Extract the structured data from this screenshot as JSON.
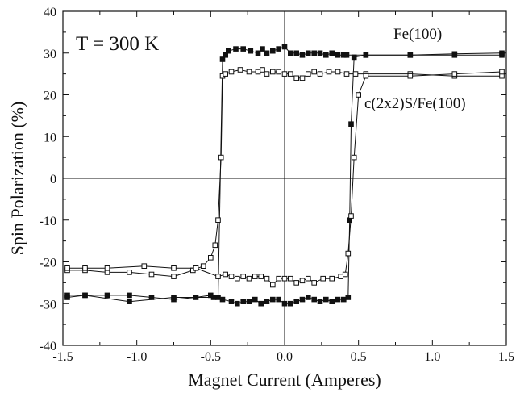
{
  "chart_data": {
    "type": "line",
    "title": "",
    "xlabel": "Magnet Current (Amperes)",
    "ylabel": "Spin Polarization (%)",
    "xlim": [
      -1.5,
      1.5
    ],
    "ylim": [
      -40,
      40
    ],
    "x_ticks": [
      "-1.5",
      "-1.0",
      "-0.5",
      "0.0",
      "0.5",
      "1.0",
      "1.5"
    ],
    "y_ticks": [
      "40",
      "30",
      "20",
      "10",
      "0",
      "-10",
      "-20",
      "-30",
      "-40"
    ],
    "x_tick_values": [
      -1.5,
      -1.0,
      -0.5,
      0.0,
      0.5,
      1.0,
      1.5
    ],
    "y_tick_values": [
      40,
      30,
      20,
      10,
      0,
      -10,
      -20,
      -30,
      -40
    ],
    "annotations": {
      "temperature": "T = 300 K",
      "series_fe": "Fe(100)",
      "series_s": "c(2x2)S/Fe(100)"
    },
    "grid": false,
    "series": [
      {
        "name": "Fe(100)",
        "marker": "filled-square",
        "color": "#111111",
        "branches": [
          {
            "x": [
              -1.47,
              -1.35,
              -1.2,
              -1.05,
              -0.9,
              -0.75,
              -0.6,
              -0.5,
              -0.45,
              -0.42,
              -0.4,
              -0.38,
              -0.33,
              -0.28,
              -0.23,
              -0.18,
              -0.15,
              -0.12,
              -0.08,
              -0.04,
              0.0,
              0.04,
              0.08,
              0.12,
              0.16,
              0.2,
              0.24,
              0.28,
              0.32,
              0.36,
              0.4,
              0.42,
              0.55,
              0.85,
              1.15,
              1.47
            ],
            "y": [
              -28,
              -28,
              -28,
              -28,
              -28.5,
              -29,
              -28.5,
              -28,
              -28.5,
              28.5,
              29.5,
              30.5,
              31,
              31,
              30.5,
              30,
              31,
              30,
              30.5,
              31,
              31.5,
              30,
              30,
              29.5,
              30,
              30,
              30,
              29.5,
              30,
              29.5,
              29.5,
              29.5,
              29.5,
              29.5,
              29.8,
              30
            ]
          },
          {
            "x": [
              1.47,
              1.15,
              0.85,
              0.55,
              0.47,
              0.45,
              0.44,
              0.43,
              0.4,
              0.36,
              0.32,
              0.28,
              0.24,
              0.2,
              0.16,
              0.12,
              0.08,
              0.04,
              0.0,
              -0.04,
              -0.08,
              -0.12,
              -0.16,
              -0.2,
              -0.24,
              -0.28,
              -0.32,
              -0.36,
              -0.42,
              -0.48,
              -0.75,
              -1.05,
              -1.35,
              -1.47
            ],
            "y": [
              29.5,
              29.5,
              29.5,
              29.5,
              29,
              13,
              -10,
              -28.5,
              -29,
              -29,
              -29.5,
              -29,
              -29.5,
              -29,
              -28.5,
              -29,
              -29.5,
              -30,
              -30,
              -29,
              -29,
              -29.5,
              -30,
              -29,
              -29.5,
              -29.5,
              -30,
              -29.5,
              -29,
              -28.5,
              -28.5,
              -29.5,
              -28,
              -28.5
            ]
          }
        ]
      },
      {
        "name": "c(2x2)S/Fe(100)",
        "marker": "open-square",
        "color": "#111111",
        "branches": [
          {
            "x": [
              -1.47,
              -1.35,
              -1.2,
              -1.05,
              -0.9,
              -0.75,
              -0.62,
              -0.55,
              -0.5,
              -0.47,
              -0.45,
              -0.43,
              -0.42,
              -0.4,
              -0.36,
              -0.3,
              -0.24,
              -0.18,
              -0.15,
              -0.12,
              -0.08,
              -0.04,
              0.0,
              0.04,
              0.08,
              0.12,
              0.16,
              0.2,
              0.24,
              0.3,
              0.36,
              0.42,
              0.48,
              0.55,
              0.85,
              1.15,
              1.47
            ],
            "y": [
              -22,
              -22,
              -22.5,
              -22.5,
              -23,
              -23.5,
              -22,
              -21,
              -19,
              -16,
              -10,
              5,
              24.5,
              25,
              25.5,
              26,
              25.5,
              25.5,
              26,
              25,
              25.5,
              25.5,
              25,
              25,
              24,
              24,
              25,
              25.5,
              25,
              25.5,
              25.5,
              25,
              25,
              25,
              25,
              24.5,
              24.5
            ]
          },
          {
            "x": [
              1.47,
              1.15,
              0.85,
              0.55,
              0.5,
              0.47,
              0.45,
              0.43,
              0.41,
              0.38,
              0.32,
              0.26,
              0.2,
              0.16,
              0.12,
              0.08,
              0.04,
              0.0,
              -0.04,
              -0.08,
              -0.12,
              -0.16,
              -0.2,
              -0.24,
              -0.28,
              -0.32,
              -0.36,
              -0.4,
              -0.45,
              -0.6,
              -0.75,
              -0.95,
              -1.2,
              -1.35,
              -1.47
            ],
            "y": [
              25.5,
              25,
              24.5,
              24.5,
              20,
              5,
              -9,
              -18,
              -23,
              -23.5,
              -24,
              -24,
              -25,
              -24,
              -24.5,
              -25,
              -24,
              -24,
              -24,
              -25.5,
              -24,
              -23.5,
              -23.5,
              -24,
              -23.5,
              -24,
              -23.5,
              -23,
              -23.5,
              -21.5,
              -21.5,
              -21,
              -21.5,
              -21.5,
              -21.5
            ]
          }
        ]
      }
    ]
  }
}
